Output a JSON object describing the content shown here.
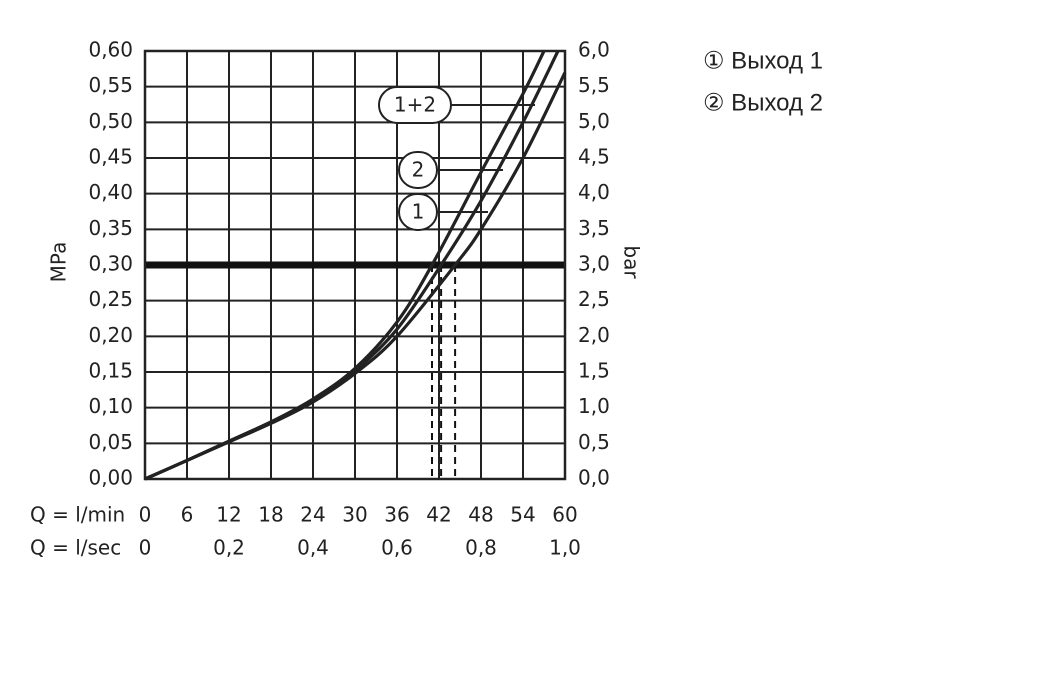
{
  "chart_data": {
    "type": "line",
    "x_label": "Q = l/min",
    "x2_label": "Q = l/sec",
    "y_label": "MPa",
    "y2_label": "bar",
    "xlim": [
      0,
      60
    ],
    "xticks": [
      0,
      6,
      12,
      18,
      24,
      30,
      36,
      42,
      48,
      54,
      60
    ],
    "x2lim": [
      0,
      1
    ],
    "x2ticks": [
      0,
      {
        "value": 0.2,
        "label": "0,2"
      },
      {
        "value": 0.4,
        "label": "0,4"
      },
      {
        "value": 0.6,
        "label": "0,6"
      },
      {
        "value": 0.8,
        "label": "0,8"
      },
      {
        "value": 1.0,
        "label": "1,0"
      }
    ],
    "ylim": [
      0,
      0.6
    ],
    "yticks": [
      {
        "value": 0,
        "label": "0,00"
      },
      {
        "value": 0.05,
        "label": "0,05"
      },
      {
        "value": 0.1,
        "label": "0,10"
      },
      {
        "value": 0.15,
        "label": "0,15"
      },
      {
        "value": 0.2,
        "label": "0,20"
      },
      {
        "value": 0.25,
        "label": "0,25"
      },
      {
        "value": 0.3,
        "label": "0,30"
      },
      {
        "value": 0.35,
        "label": "0,35"
      },
      {
        "value": 0.4,
        "label": "0,40"
      },
      {
        "value": 0.45,
        "label": "0,45"
      },
      {
        "value": 0.5,
        "label": "0,50"
      },
      {
        "value": 0.55,
        "label": "0,55"
      },
      {
        "value": 0.6,
        "label": "0,60"
      }
    ],
    "y2lim": [
      0,
      6
    ],
    "y2ticks": [
      {
        "value": 0,
        "label": "0,0"
      },
      {
        "value": 0.5,
        "label": "0,5"
      },
      {
        "value": 1,
        "label": "1,0"
      },
      {
        "value": 1.5,
        "label": "1,5"
      },
      {
        "value": 2,
        "label": "2,0"
      },
      {
        "value": 2.5,
        "label": "2,5"
      },
      {
        "value": 3,
        "label": "3,0"
      },
      {
        "value": 3.5,
        "label": "3,5"
      },
      {
        "value": 4,
        "label": "4,0"
      },
      {
        "value": 4.5,
        "label": "4,5"
      },
      {
        "value": 5,
        "label": "5,0"
      },
      {
        "value": 5.5,
        "label": "5,5"
      },
      {
        "value": 6,
        "label": "6,0"
      }
    ],
    "grid": true,
    "hline": 0.3,
    "drop_lines": [
      41,
      42.3,
      44.3
    ],
    "series": [
      {
        "name": "1+2",
        "color": "#222222",
        "x": [
          0,
          6,
          12,
          18,
          24,
          30,
          36,
          41,
          48,
          54,
          57
        ],
        "values": [
          0,
          0.026,
          0.053,
          0.08,
          0.112,
          0.155,
          0.22,
          0.3,
          0.43,
          0.54,
          0.6
        ]
      },
      {
        "name": "2",
        "color": "#222222",
        "x": [
          0,
          6,
          12,
          18,
          24,
          30,
          36,
          42.3,
          48,
          54,
          59
        ],
        "values": [
          0,
          0.026,
          0.053,
          0.08,
          0.11,
          0.152,
          0.21,
          0.3,
          0.39,
          0.5,
          0.6
        ]
      },
      {
        "name": "1",
        "color": "#222222",
        "x": [
          0,
          6,
          12,
          18,
          24,
          30,
          36,
          44.3,
          48,
          54,
          60
        ],
        "values": [
          0,
          0.026,
          0.052,
          0.078,
          0.108,
          0.148,
          0.2,
          0.3,
          0.35,
          0.45,
          0.57
        ]
      }
    ],
    "legend": [
      "① Выход 1",
      "② Выход 2"
    ]
  }
}
